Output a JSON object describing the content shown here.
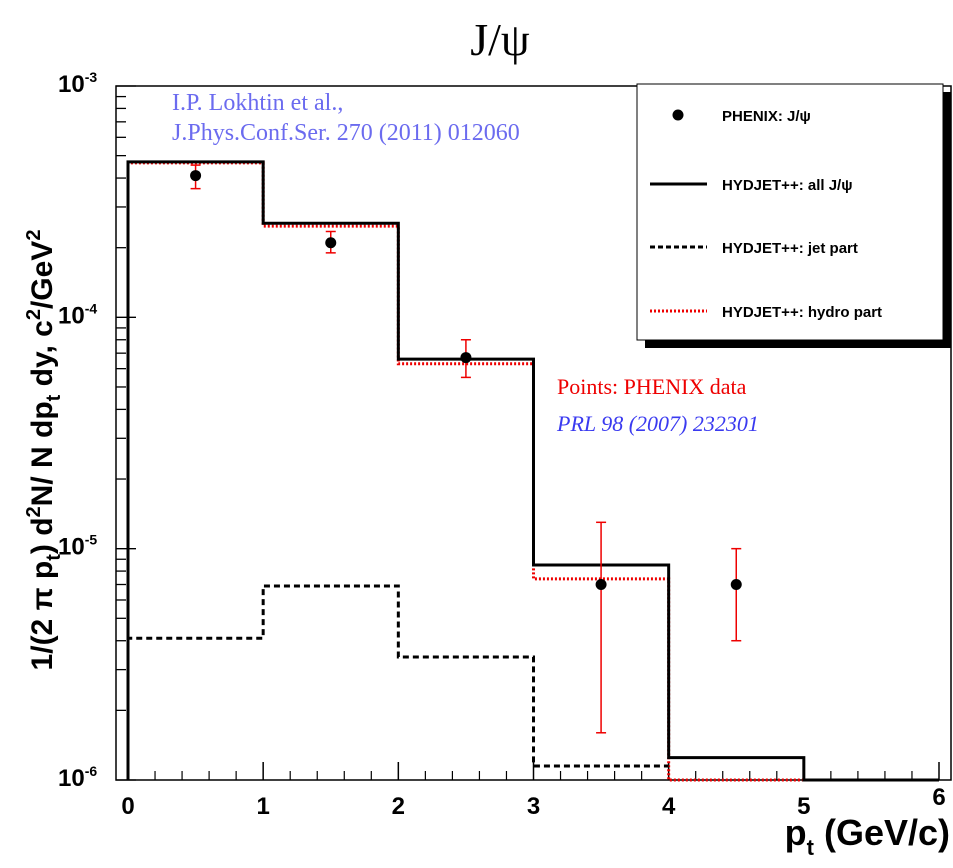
{
  "chart_data": {
    "type": "line",
    "title": "J/ψ",
    "xlabel_main": "p",
    "xlabel_sub": "t",
    "xlabel_units": " (GeV/c)",
    "ylabel_parts": {
      "a": "1/(2 π p",
      "a_sub": "t",
      "b": ") d",
      "b_sup": "2",
      "c": "N/ N dp",
      "c_sub": "t",
      "d": " dy, c",
      "d_sup": "2",
      "e": "/GeV",
      "e_sup": "2"
    },
    "x_range": [
      0,
      6
    ],
    "y_range": [
      1e-06,
      0.001
    ],
    "y_scale": "log",
    "x_ticks": [
      "0",
      "1",
      "2",
      "3",
      "4",
      "5",
      "6"
    ],
    "y_ticks": [
      {
        "base": "10",
        "exp": "-6",
        "value": 1e-06
      },
      {
        "base": "10",
        "exp": "-5",
        "value": 1e-05
      },
      {
        "base": "10",
        "exp": "-4",
        "value": 0.0001
      },
      {
        "base": "10",
        "exp": "-3",
        "value": 0.001
      }
    ],
    "series": [
      {
        "name": "PHENIX: J/ψ",
        "kind": "points",
        "color": "#000000",
        "error_color": "#ee0000",
        "points": [
          {
            "x": 0.5,
            "y": 0.00041,
            "lo": 0.00036,
            "hi": 0.000455
          },
          {
            "x": 1.5,
            "y": 0.00021,
            "lo": 0.00019,
            "hi": 0.000235
          },
          {
            "x": 2.5,
            "y": 6.7e-05,
            "lo": 5.5e-05,
            "hi": 8e-05
          },
          {
            "x": 3.5,
            "y": 7e-06,
            "lo": 1.6e-06,
            "hi": 1.3e-05
          },
          {
            "x": 4.5,
            "y": 7e-06,
            "lo": 4e-06,
            "hi": 1e-05
          }
        ]
      },
      {
        "name": "HYDJET++: all J/ψ",
        "kind": "hist",
        "color": "#000000",
        "dash": "none",
        "bins": [
          0,
          1,
          2,
          3,
          4,
          5,
          6
        ],
        "values": [
          0.00047,
          0.000255,
          6.6e-05,
          8.5e-06,
          1.25e-06,
          1e-06
        ]
      },
      {
        "name": "HYDJET++: jet  part",
        "kind": "hist",
        "color": "#000000",
        "dash": "6,4",
        "bins": [
          0,
          1,
          2,
          3,
          4
        ],
        "values": [
          4.1e-06,
          6.9e-06,
          3.4e-06,
          1.15e-06
        ]
      },
      {
        "name": "HYDJET++: hydro part",
        "kind": "hist",
        "color": "#ee0000",
        "dash": "2,2",
        "bins": [
          0,
          1,
          2,
          3,
          4,
          5,
          6
        ],
        "values": [
          0.000465,
          0.000248,
          6.3e-05,
          7.4e-06,
          1e-06,
          1e-06
        ]
      }
    ],
    "legend_position": "top-right",
    "annotations": {
      "ref_line1": "I.P. Lokhtin et al.,",
      "ref_line2": "J.Phys.Conf.Ser. 270 (2011) 012060",
      "ref_color": "#6b6bef",
      "data_line1": "Points: PHENIX data",
      "data_line1_color": "#ee0000",
      "data_line2": "PRL 98 (2007) 232301",
      "data_line2_color": "#3a3af0"
    }
  }
}
